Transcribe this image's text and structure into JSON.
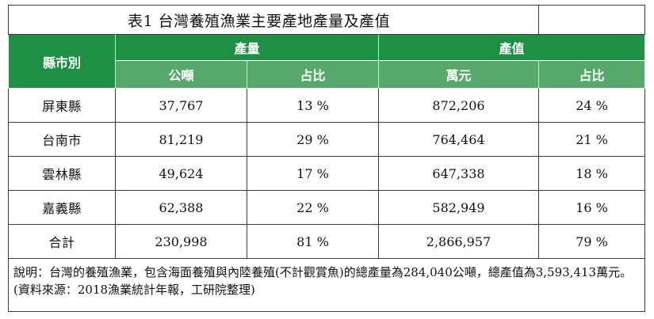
{
  "title": "表1 台灣養殖漁業主要產地產量及產值",
  "headers": {
    "county": "縣市別",
    "production": "產量",
    "value": "產值",
    "production_unit": "公噸",
    "production_share": "占比",
    "value_unit": "萬元",
    "value_share": "占比"
  },
  "rows": [
    {
      "county": "屏東縣",
      "tons": "37,767",
      "tons_share": "13 %",
      "value": "872,206",
      "value_share": "24 %"
    },
    {
      "county": "台南市",
      "tons": "81,219",
      "tons_share": "29 %",
      "value": "764,464",
      "value_share": "21 %"
    },
    {
      "county": "雲林縣",
      "tons": "49,624",
      "tons_share": "17 %",
      "value": "647,338",
      "value_share": "18 %"
    },
    {
      "county": "嘉義縣",
      "tons": "62,388",
      "tons_share": "22 %",
      "value": "582,949",
      "value_share": "16 %"
    },
    {
      "county": "合計",
      "tons": "230,998",
      "tons_share": "81 %",
      "value": "2,866,957",
      "value_share": "79 %"
    }
  ],
  "note": "說明：台灣的養殖漁業，包含海面養殖與內陸養殖(不計觀賞魚)的總產量為284,040公噸，總產值為3,593,413萬元。(資料來源：2018漁業統計年報，工研院整理)",
  "colors": {
    "header_dark": "#1f8f45",
    "header_light": "#57a96b"
  }
}
